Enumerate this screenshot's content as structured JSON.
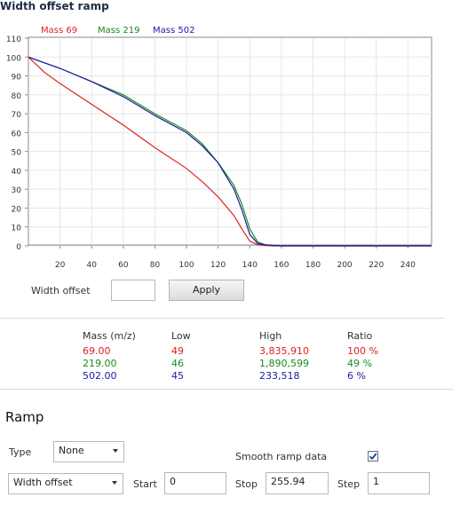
{
  "chart_data": {
    "type": "line",
    "title": "Width offset ramp",
    "xlim": [
      0,
      255
    ],
    "ylim": [
      0,
      110
    ],
    "x_ticks": [
      20,
      40,
      60,
      80,
      100,
      120,
      140,
      160,
      180,
      200,
      220,
      240
    ],
    "y_ticks": [
      0,
      10,
      20,
      30,
      40,
      50,
      60,
      70,
      80,
      90,
      100,
      110
    ],
    "legend": "top-left",
    "series": [
      {
        "name": "Mass 69",
        "color": "#e02020",
        "x": [
          0,
          10,
          20,
          40,
          60,
          80,
          100,
          110,
          120,
          130,
          135,
          140,
          145,
          150,
          155,
          160,
          255
        ],
        "y": [
          100,
          92,
          86,
          75,
          64,
          52,
          41,
          34,
          26,
          16,
          9,
          2.5,
          0.5,
          0.2,
          0,
          0,
          0
        ]
      },
      {
        "name": "Mass 219",
        "color": "#1a8a1a",
        "x": [
          0,
          10,
          20,
          40,
          60,
          80,
          100,
          110,
          120,
          130,
          135,
          140,
          145,
          150,
          155,
          160,
          255
        ],
        "y": [
          100,
          97,
          94,
          87,
          80,
          70,
          61,
          54,
          44,
          32,
          22,
          9,
          2,
          0.5,
          0.3,
          0,
          0
        ]
      },
      {
        "name": "Mass 502",
        "color": "#1a1aa8",
        "x": [
          0,
          10,
          20,
          40,
          60,
          80,
          100,
          110,
          120,
          130,
          135,
          140,
          145,
          150,
          155,
          160,
          255
        ],
        "y": [
          100,
          97,
          94,
          87,
          79,
          69,
          60,
          53,
          44,
          30,
          19,
          6,
          1.2,
          0.5,
          0.2,
          0,
          0
        ]
      }
    ]
  },
  "width_offset": {
    "label": "Width offset",
    "value": "",
    "apply_label": "Apply"
  },
  "mass_table": {
    "headers": {
      "mass": "Mass (m/z)",
      "low": "Low",
      "high": "High",
      "ratio": "Ratio"
    },
    "rows": [
      {
        "mass": "69.00",
        "low": "49",
        "high": "3,835,910",
        "ratio": "100 %",
        "color": "#e02020"
      },
      {
        "mass": "219.00",
        "low": "46",
        "high": "1,890,599",
        "ratio": "49 %",
        "color": "#1a8a1a"
      },
      {
        "mass": "502.00",
        "low": "45",
        "high": "233,518",
        "ratio": "6 %",
        "color": "#1a1aa8"
      }
    ]
  },
  "ramp": {
    "title": "Ramp",
    "type_label": "Type",
    "type_value": "None",
    "smooth_label": "Smooth ramp data",
    "smooth_checked": true,
    "param_value": "Width offset",
    "start_label": "Start",
    "start_value": "0",
    "stop_label": "Stop",
    "stop_value": "255.94",
    "step_label": "Step",
    "step_value": "1"
  }
}
